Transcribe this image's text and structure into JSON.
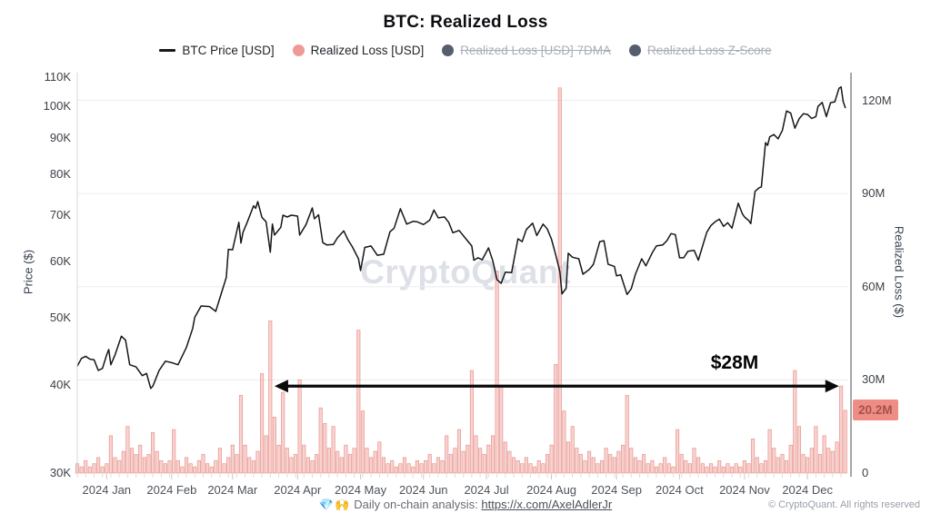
{
  "title": "BTC: Realized Loss",
  "legend": {
    "items": [
      {
        "label": "BTC Price [USD]",
        "swatch": "line",
        "color": "#17181c",
        "enabled": true
      },
      {
        "label": "Realized Loss [USD]",
        "swatch": "dot",
        "color": "#ef9a94",
        "enabled": true
      },
      {
        "label": "Realized Loss [USD] 7DMA",
        "swatch": "dot",
        "color": "#565d6d",
        "enabled": false
      },
      {
        "label": "Realized Loss Z-Score",
        "swatch": "dot",
        "color": "#565d6d",
        "enabled": false
      }
    ]
  },
  "axes": {
    "left": {
      "title": "Price ($)",
      "ticks": [
        "110K",
        "100K",
        "90K",
        "80K",
        "70K",
        "60K",
        "50K",
        "40K",
        "30K"
      ]
    },
    "right": {
      "title": "Realized Loss ($)",
      "ticks": [
        "120M",
        "90M",
        "60M",
        "30M",
        "0"
      ]
    },
    "x": {
      "ticks": [
        "2024 Jan",
        "2024 Feb",
        "2024 Mar",
        "2024 Apr",
        "2024 May",
        "2024 Jun",
        "2024 Jul",
        "2024 Aug",
        "2024 Sep",
        "2024 Oct",
        "2024 Nov",
        "2024 Dec"
      ]
    }
  },
  "annotation": {
    "label": "$28M"
  },
  "last_value_badge": "20.2M",
  "watermark": "CryptoQuant",
  "footer": {
    "emoji": "💎🙌",
    "note": "Daily on-chain analysis: ",
    "link": "https://x.com/AxelAdlerJr",
    "copyright": "© CryptoQuant. All rights reserved"
  },
  "chart_data": {
    "type": "mixed",
    "title": "BTC: Realized Loss",
    "grid": "horizontal-only",
    "legend_position": "top-center",
    "x_axis": {
      "tick_labels": [
        "2024 Jan",
        "2024 Feb",
        "2024 Mar",
        "2024 Apr",
        "2024 May",
        "2024 Jun",
        "2024 Jul",
        "2024 Aug",
        "2024 Sep",
        "2024 Oct",
        "2024 Nov",
        "2024 Dec"
      ],
      "month_start_day_offsets": [
        14,
        45,
        74,
        105,
        135,
        165,
        195,
        226,
        257,
        287,
        318,
        348
      ],
      "days_total": 367
    },
    "y_left": {
      "label": "Price ($)",
      "scale": "log",
      "units": "USD thousands",
      "ticks_k": [
        110,
        100,
        90,
        80,
        70,
        60,
        50,
        40,
        30
      ],
      "range_k": [
        30,
        110
      ]
    },
    "y_right": {
      "label": "Realized Loss ($)",
      "scale": "linear",
      "units": "USD millions",
      "ticks_m": [
        120,
        90,
        60,
        30,
        0
      ],
      "range_m": [
        0,
        128
      ]
    },
    "annotation": {
      "text": "$28M",
      "level_m": 28,
      "from_day": 94,
      "to_day": 363
    },
    "last_value": {
      "label": "20.2M",
      "value_m": 20.2
    },
    "series": [
      {
        "name": "BTC Price [USD]",
        "type": "line",
        "axis": "left",
        "color": "#15161a",
        "points_day_priceK": [
          [
            0,
            42.6
          ],
          [
            2,
            43.7
          ],
          [
            4,
            44.0
          ],
          [
            6,
            43.6
          ],
          [
            8,
            43.5
          ],
          [
            10,
            42.0
          ],
          [
            12,
            42.3
          ],
          [
            14,
            44.2
          ],
          [
            15,
            45.0
          ],
          [
            16,
            42.8
          ],
          [
            18,
            44.2
          ],
          [
            21,
            47.0
          ],
          [
            23,
            46.4
          ],
          [
            25,
            42.8
          ],
          [
            28,
            42.5
          ],
          [
            31,
            41.3
          ],
          [
            33,
            41.6
          ],
          [
            35,
            39.6
          ],
          [
            36,
            39.9
          ],
          [
            39,
            42.0
          ],
          [
            42,
            43.3
          ],
          [
            45,
            43.1
          ],
          [
            48,
            42.8
          ],
          [
            52,
            45.3
          ],
          [
            55,
            48.2
          ],
          [
            56,
            50.0
          ],
          [
            59,
            51.9
          ],
          [
            63,
            51.8
          ],
          [
            66,
            51.0
          ],
          [
            69,
            54.5
          ],
          [
            71,
            57.0
          ],
          [
            72,
            62.5
          ],
          [
            74,
            62.4
          ],
          [
            77,
            68.3
          ],
          [
            78,
            63.8
          ],
          [
            79,
            66.1
          ],
          [
            81,
            68.3
          ],
          [
            84,
            72.1
          ],
          [
            85,
            71.5
          ],
          [
            86,
            73.1
          ],
          [
            88,
            69.4
          ],
          [
            90,
            68.4
          ],
          [
            92,
            61.9
          ],
          [
            93,
            67.9
          ],
          [
            94,
            65.5
          ],
          [
            97,
            67.2
          ],
          [
            98,
            69.9
          ],
          [
            100,
            69.5
          ],
          [
            102,
            69.9
          ],
          [
            105,
            69.7
          ],
          [
            106,
            65.5
          ],
          [
            109,
            67.8
          ],
          [
            112,
            71.6
          ],
          [
            113,
            69.1
          ],
          [
            115,
            70.0
          ],
          [
            117,
            63.9
          ],
          [
            119,
            63.4
          ],
          [
            122,
            63.5
          ],
          [
            124,
            64.9
          ],
          [
            127,
            66.4
          ],
          [
            129,
            64.5
          ],
          [
            131,
            63.1
          ],
          [
            134,
            60.6
          ],
          [
            135,
            58.3
          ],
          [
            137,
            62.9
          ],
          [
            140,
            63.2
          ],
          [
            143,
            61.3
          ],
          [
            146,
            61.5
          ],
          [
            149,
            66.2
          ],
          [
            151,
            67.0
          ],
          [
            154,
            71.4
          ],
          [
            157,
            67.9
          ],
          [
            160,
            68.5
          ],
          [
            162,
            68.4
          ],
          [
            165,
            67.8
          ],
          [
            168,
            68.8
          ],
          [
            170,
            71.1
          ],
          [
            172,
            69.3
          ],
          [
            175,
            69.5
          ],
          [
            177,
            68.3
          ],
          [
            179,
            66.0
          ],
          [
            182,
            66.5
          ],
          [
            185,
            64.8
          ],
          [
            188,
            63.2
          ],
          [
            189,
            60.3
          ],
          [
            191,
            60.8
          ],
          [
            193,
            60.4
          ],
          [
            196,
            62.8
          ],
          [
            198,
            60.2
          ],
          [
            200,
            56.6
          ],
          [
            202,
            55.9
          ],
          [
            204,
            58.0
          ],
          [
            207,
            57.9
          ],
          [
            210,
            64.7
          ],
          [
            212,
            64.1
          ],
          [
            214,
            66.7
          ],
          [
            217,
            68.1
          ],
          [
            219,
            65.4
          ],
          [
            222,
            67.9
          ],
          [
            224,
            66.8
          ],
          [
            226,
            64.6
          ],
          [
            228,
            61.4
          ],
          [
            230,
            58.1
          ],
          [
            231,
            54.0
          ],
          [
            233,
            55.0
          ],
          [
            234,
            61.7
          ],
          [
            236,
            60.9
          ],
          [
            239,
            60.6
          ],
          [
            241,
            57.6
          ],
          [
            244,
            58.5
          ],
          [
            246,
            59.5
          ],
          [
            249,
            64.1
          ],
          [
            251,
            64.3
          ],
          [
            253,
            59.5
          ],
          [
            256,
            59.1
          ],
          [
            257,
            57.3
          ],
          [
            259,
            57.5
          ],
          [
            262,
            53.9
          ],
          [
            264,
            54.9
          ],
          [
            266,
            57.6
          ],
          [
            269,
            60.6
          ],
          [
            271,
            59.2
          ],
          [
            274,
            61.8
          ],
          [
            276,
            63.2
          ],
          [
            279,
            63.4
          ],
          [
            281,
            64.3
          ],
          [
            283,
            65.8
          ],
          [
            285,
            65.6
          ],
          [
            287,
            60.8
          ],
          [
            289,
            60.8
          ],
          [
            291,
            62.1
          ],
          [
            294,
            62.3
          ],
          [
            296,
            60.3
          ],
          [
            298,
            63.2
          ],
          [
            300,
            66.1
          ],
          [
            302,
            67.6
          ],
          [
            304,
            68.4
          ],
          [
            306,
            69.0
          ],
          [
            308,
            67.4
          ],
          [
            310,
            68.2
          ],
          [
            312,
            67.0
          ],
          [
            315,
            72.7
          ],
          [
            317,
            70.2
          ],
          [
            318,
            69.5
          ],
          [
            320,
            68.7
          ],
          [
            321,
            68.0
          ],
          [
            323,
            75.6
          ],
          [
            325,
            76.5
          ],
          [
            326,
            76.7
          ],
          [
            328,
            88.7
          ],
          [
            329,
            87.9
          ],
          [
            330,
            90.4
          ],
          [
            332,
            91.1
          ],
          [
            334,
            89.8
          ],
          [
            336,
            92.3
          ],
          [
            338,
            98.4
          ],
          [
            340,
            97.7
          ],
          [
            342,
            93.0
          ],
          [
            344,
            95.9
          ],
          [
            346,
            97.5
          ],
          [
            348,
            97.3
          ],
          [
            350,
            96.0
          ],
          [
            352,
            96.6
          ],
          [
            353,
            99.9
          ],
          [
            355,
            101.2
          ],
          [
            357,
            96.6
          ],
          [
            359,
            101.1
          ],
          [
            361,
            101.4
          ],
          [
            363,
            106.0
          ],
          [
            364,
            106.5
          ],
          [
            365,
            101.5
          ],
          [
            366,
            99.5
          ]
        ]
      },
      {
        "name": "Realized Loss [USD]",
        "type": "bar",
        "axis": "right",
        "fill": "rgba(240,167,162,0.5)",
        "stroke": "rgba(232,138,131,0.9)",
        "start_day": 0,
        "step_days": 2,
        "values_m": [
          3,
          2,
          4,
          2,
          3,
          5,
          2,
          3,
          12,
          5,
          4,
          7,
          15,
          8,
          6,
          9,
          5,
          6,
          13,
          7,
          4,
          3,
          4,
          14,
          4,
          2,
          5,
          3,
          2,
          4,
          6,
          3,
          2,
          4,
          8,
          3,
          5,
          9,
          6,
          25,
          9,
          5,
          4,
          7,
          32,
          12,
          49,
          18,
          9,
          26,
          8,
          5,
          6,
          30,
          9,
          5,
          4,
          6,
          21,
          16,
          8,
          15,
          7,
          5,
          9,
          6,
          8,
          46,
          20,
          8,
          5,
          7,
          10,
          5,
          3,
          4,
          2,
          3,
          5,
          3,
          2,
          4,
          3,
          4,
          6,
          3,
          5,
          4,
          12,
          6,
          8,
          14,
          7,
          9,
          33,
          12,
          8,
          6,
          9,
          12,
          65,
          28,
          10,
          7,
          5,
          4,
          3,
          5,
          3,
          2,
          4,
          3,
          6,
          9,
          35,
          124,
          20,
          10,
          15,
          8,
          6,
          4,
          7,
          5,
          3,
          4,
          8,
          6,
          5,
          7,
          9,
          25,
          8,
          5,
          4,
          6,
          3,
          4,
          2,
          3,
          5,
          3,
          2,
          14,
          6,
          4,
          3,
          8,
          5,
          3,
          2,
          3,
          2,
          4,
          2,
          3,
          2,
          3,
          2,
          4,
          3,
          11,
          5,
          3,
          4,
          14,
          8,
          5,
          6,
          4,
          9,
          33,
          15,
          6,
          5,
          8,
          15,
          6,
          12,
          8,
          7,
          10,
          28,
          20.2
        ]
      }
    ]
  }
}
